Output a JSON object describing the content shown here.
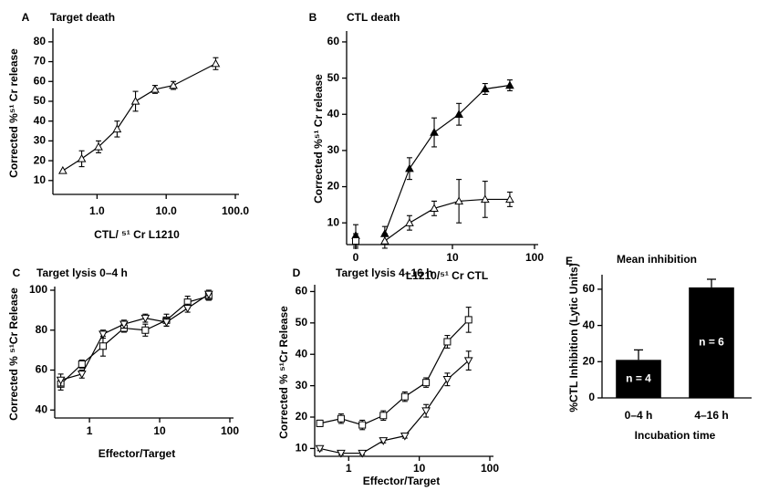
{
  "chart_data": [
    {
      "type": "line",
      "panel": "A",
      "title": "Target death",
      "xlabel": "CTL/ ⁵¹ Cr L1210",
      "ylabel": "Corrected %⁵¹ Cr release",
      "logx": true,
      "xlim": [
        0.23,
        100
      ],
      "ylim": [
        3,
        85
      ],
      "xticks": [
        {
          "value": 1,
          "label": "1.0"
        },
        {
          "value": 10,
          "label": "10.0"
        },
        {
          "value": 100,
          "label": "100.0"
        }
      ],
      "yticks": [
        10,
        20,
        30,
        40,
        50,
        60,
        70,
        80
      ],
      "x": [
        0.32,
        0.6,
        1.05,
        1.95,
        3.6,
        6.9,
        12.7,
        52
      ],
      "series": [
        {
          "marker": "triangle",
          "filled": false,
          "line": true,
          "color": "#000000",
          "values": [
            15,
            21,
            27,
            36,
            50,
            56,
            58,
            69
          ],
          "errors": [
            null,
            4,
            3,
            4,
            5,
            2,
            2,
            3
          ]
        }
      ]
    },
    {
      "type": "line",
      "panel": "B",
      "title": "CTL death",
      "xlabel": "L1210/⁵¹ Cr CTL",
      "ylabel": "Corrected %⁵¹ Cr release",
      "logx": true,
      "xlim": [
        1,
        100
      ],
      "ylim": [
        4,
        62
      ],
      "xticks": [
        0,
        10,
        100
      ],
      "yticks": [
        10,
        20,
        30,
        40,
        50,
        60
      ],
      "series": [
        {
          "marker": "triangle",
          "filled": true,
          "line": true,
          "color": "#000000",
          "x": [
            1.5,
            3,
            6,
            12,
            25,
            50
          ],
          "values": [
            7,
            25,
            35,
            40,
            47,
            48
          ],
          "errors": [
            2,
            3,
            4,
            3,
            1.5,
            1.5
          ]
        },
        {
          "marker": "triangle",
          "filled": false,
          "line": true,
          "color": "#000000",
          "x": [
            1.5,
            3,
            6,
            12,
            25,
            50
          ],
          "values": [
            5,
            10,
            14,
            16,
            16.5,
            16.5
          ],
          "errors": [
            2,
            2,
            2,
            6,
            5,
            2
          ]
        },
        {
          "marker": "triangle",
          "filled": true,
          "line": false,
          "color": "#000000",
          "x": [
            0
          ],
          "values": [
            6.5
          ],
          "errors": [
            3
          ]
        },
        {
          "marker": "square",
          "filled": false,
          "line": false,
          "color": "#000000",
          "x": [
            0
          ],
          "values": [
            5
          ],
          "errors": [
            2
          ]
        }
      ]
    },
    {
      "type": "line",
      "panel": "C",
      "title": "Target lysis 0–4 h",
      "xlabel": "Effector/Target",
      "ylabel": "Corrected % ⁵¹Cr Release",
      "logx": true,
      "xlim": [
        0.32,
        100
      ],
      "ylim": [
        36,
        100
      ],
      "xticks": [
        1,
        10,
        100
      ],
      "yticks": [
        40,
        60,
        80,
        100
      ],
      "x": [
        0.39,
        0.78,
        1.56,
        3.1,
        6.25,
        12.5,
        25,
        50
      ],
      "series": [
        {
          "marker": "square",
          "filled": false,
          "line": true,
          "color": "#000000",
          "values": [
            53,
            63,
            72,
            81,
            80,
            85,
            94,
            97
          ],
          "errors": [
            3,
            2,
            5,
            2,
            3,
            3,
            3,
            2
          ]
        },
        {
          "marker": "triangle-down",
          "filled": false,
          "line": true,
          "color": "#000000",
          "values": [
            55,
            58,
            78,
            83,
            86,
            84,
            91,
            98
          ],
          "errors": [
            3,
            2,
            2,
            2,
            2,
            2,
            2,
            2
          ]
        }
      ]
    },
    {
      "type": "line",
      "panel": "D",
      "title": "Target lysis 4–16 h",
      "xlabel": "Effector/Target",
      "ylabel": "Corrected % ⁵¹Cr Release",
      "logx": true,
      "xlim": [
        0.33,
        100
      ],
      "ylim": [
        7.5,
        61
      ],
      "xticks": [
        1,
        10,
        100
      ],
      "yticks": [
        10,
        20,
        30,
        40,
        50,
        60
      ],
      "x": [
        0.39,
        0.78,
        1.56,
        3.1,
        6.25,
        12.5,
        25,
        50
      ],
      "series": [
        {
          "marker": "square",
          "filled": false,
          "line": true,
          "color": "#000000",
          "values": [
            18,
            19.5,
            17.5,
            20.5,
            26.5,
            31,
            44,
            51
          ],
          "errors": [
            1,
            1.5,
            1.5,
            1.5,
            1.5,
            1.5,
            2,
            4
          ]
        },
        {
          "marker": "triangle-down",
          "filled": false,
          "line": true,
          "color": "#000000",
          "values": [
            10,
            8.5,
            8.5,
            12.5,
            14,
            22,
            32,
            38
          ],
          "errors": [
            0.7,
            0.5,
            0.5,
            0.7,
            0.7,
            2,
            2,
            3
          ]
        }
      ]
    },
    {
      "type": "bar",
      "panel": "E",
      "title": "Mean inhibition",
      "xlabel": "Incubation time",
      "ylabel": "%CTL Inhibition (Lytic Units)",
      "ylim": [
        0,
        66
      ],
      "yticks": [
        0,
        20,
        40,
        60
      ],
      "categories": [
        "0–4 h",
        "4–16 h"
      ],
      "values": [
        21,
        61
      ],
      "errors": [
        5.5,
        4.5
      ],
      "bar_labels": [
        "n = 4",
        "n = 6"
      ],
      "color": "#000000"
    }
  ]
}
